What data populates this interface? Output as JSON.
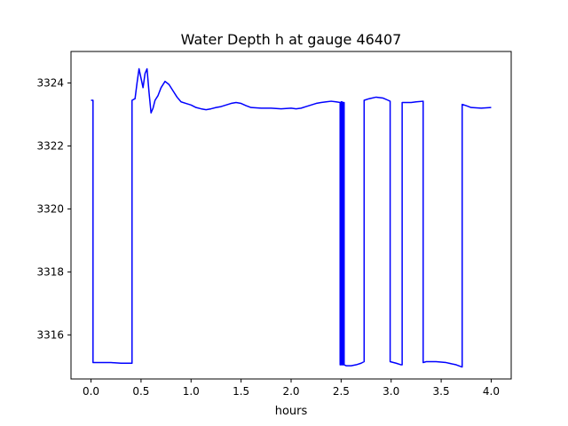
{
  "chart_data": {
    "type": "line",
    "title": "Water Depth h at gauge 46407",
    "xlabel": "hours",
    "ylabel": "",
    "xlim": [
      -0.2,
      4.2
    ],
    "ylim": [
      3314.6,
      3325.0
    ],
    "xticks": [
      0.0,
      0.5,
      1.0,
      1.5,
      2.0,
      2.5,
      3.0,
      3.5,
      4.0
    ],
    "xtick_labels": [
      "0.0",
      "0.5",
      "1.0",
      "1.5",
      "2.0",
      "2.5",
      "3.0",
      "3.5",
      "4.0"
    ],
    "yticks": [
      3316,
      3318,
      3320,
      3322,
      3324
    ],
    "ytick_labels": [
      "3316",
      "3318",
      "3320",
      "3322",
      "3324"
    ],
    "grid": false,
    "series": [
      {
        "color": "#0000ff",
        "x": [
          0.0,
          0.02,
          0.02,
          0.05,
          0.1,
          0.2,
          0.3,
          0.35,
          0.41,
          0.41,
          0.44,
          0.46,
          0.48,
          0.5,
          0.52,
          0.54,
          0.56,
          0.58,
          0.6,
          0.62,
          0.64,
          0.67,
          0.7,
          0.74,
          0.78,
          0.82,
          0.86,
          0.9,
          0.95,
          1.0,
          1.05,
          1.1,
          1.15,
          1.2,
          1.25,
          1.3,
          1.35,
          1.4,
          1.45,
          1.5,
          1.55,
          1.6,
          1.7,
          1.8,
          1.9,
          2.0,
          2.05,
          2.1,
          2.15,
          2.2,
          2.25,
          2.3,
          2.35,
          2.4,
          2.45,
          2.49,
          2.49,
          2.5,
          2.5,
          2.51,
          2.51,
          2.52,
          2.52,
          2.53,
          2.53,
          2.55,
          2.6,
          2.65,
          2.7,
          2.73,
          2.73,
          2.78,
          2.85,
          2.92,
          2.97,
          2.99,
          2.99,
          3.05,
          3.1,
          3.11,
          3.11,
          3.15,
          3.2,
          3.25,
          3.32,
          3.32,
          3.35,
          3.45,
          3.55,
          3.65,
          3.71,
          3.71,
          3.75,
          3.8,
          3.9,
          4.0
        ],
        "y": [
          3323.45,
          3323.45,
          3315.12,
          3315.12,
          3315.12,
          3315.12,
          3315.1,
          3315.1,
          3315.1,
          3323.45,
          3323.5,
          3324.0,
          3324.45,
          3324.15,
          3323.85,
          3324.3,
          3324.45,
          3323.7,
          3323.05,
          3323.2,
          3323.45,
          3323.6,
          3323.85,
          3324.05,
          3323.95,
          3323.75,
          3323.55,
          3323.4,
          3323.35,
          3323.3,
          3323.22,
          3323.18,
          3323.15,
          3323.18,
          3323.22,
          3323.25,
          3323.3,
          3323.35,
          3323.38,
          3323.35,
          3323.28,
          3323.22,
          3323.2,
          3323.2,
          3323.18,
          3323.2,
          3323.18,
          3323.2,
          3323.25,
          3323.3,
          3323.35,
          3323.38,
          3323.4,
          3323.42,
          3323.4,
          3323.38,
          3315.05,
          3315.05,
          3323.4,
          3323.4,
          3315.05,
          3315.05,
          3323.38,
          3323.38,
          3315.05,
          3315.02,
          3315.02,
          3315.05,
          3315.1,
          3315.15,
          3323.45,
          3323.5,
          3323.55,
          3323.52,
          3323.45,
          3323.42,
          3315.15,
          3315.1,
          3315.05,
          3315.05,
          3323.38,
          3323.38,
          3323.38,
          3323.4,
          3323.42,
          3315.12,
          3315.15,
          3315.15,
          3315.12,
          3315.05,
          3314.98,
          3323.32,
          3323.28,
          3323.22,
          3323.2,
          3323.22
        ]
      }
    ]
  }
}
